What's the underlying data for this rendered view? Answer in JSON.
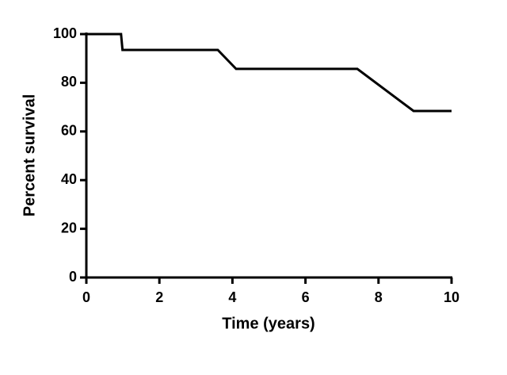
{
  "chart_data": {
    "type": "line",
    "x_label": "Time (years)",
    "y_label": "Percent survival",
    "x": [
      0,
      0.95,
      0.99,
      3.6,
      4.1,
      7.42,
      8.96,
      10
    ],
    "values": [
      100,
      100,
      93.5,
      93.5,
      85.7,
      85.7,
      68.4,
      68.4
    ],
    "color": "#000000",
    "xlim": [
      0,
      10
    ],
    "xticks": [
      0,
      2,
      4,
      6,
      8,
      10
    ],
    "ylim": [
      0,
      100
    ],
    "yticks": [
      0,
      20,
      40,
      60,
      80,
      100
    ],
    "grid": false
  }
}
